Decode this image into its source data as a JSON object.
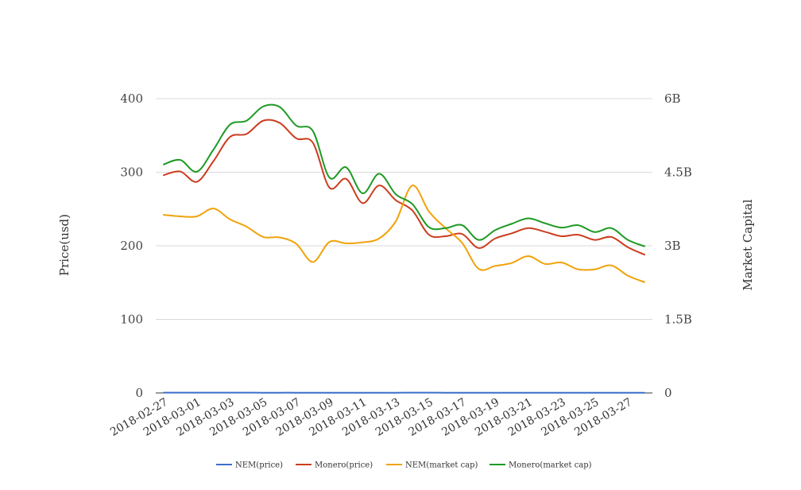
{
  "chart_data": {
    "type": "line",
    "title": "",
    "ylabel": "Price(usd)",
    "y2label": "Market Capital",
    "ylim": [
      0,
      400
    ],
    "y2lim": [
      0,
      6000000000
    ],
    "yticks": [
      "0",
      "100",
      "200",
      "300",
      "400"
    ],
    "y2ticks": [
      "0",
      "1.5B",
      "3B",
      "4.5B",
      "6B"
    ],
    "x_tick_labels": [
      "2018-02-27",
      "2018-03-01",
      "2018-03-03",
      "2018-03-05",
      "2018-03-07",
      "2018-03-09",
      "2018-03-11",
      "2018-03-13",
      "2018-03-15",
      "2018-03-17",
      "2018-03-19",
      "2018-03-21",
      "2018-03-23",
      "2018-03-25",
      "2018-03-27"
    ],
    "x": [
      "2018-02-27",
      "2018-02-28",
      "2018-03-01",
      "2018-03-02",
      "2018-03-03",
      "2018-03-04",
      "2018-03-05",
      "2018-03-06",
      "2018-03-07",
      "2018-03-08",
      "2018-03-09",
      "2018-03-10",
      "2018-03-11",
      "2018-03-12",
      "2018-03-13",
      "2018-03-14",
      "2018-03-15",
      "2018-03-16",
      "2018-03-17",
      "2018-03-18",
      "2018-03-19",
      "2018-03-20",
      "2018-03-21",
      "2018-03-22",
      "2018-03-23",
      "2018-03-24",
      "2018-03-25",
      "2018-03-26",
      "2018-03-27",
      "2018-03-28"
    ],
    "grid": true,
    "legend_position": "bottom",
    "series": [
      {
        "name": "NEM(price)",
        "axis": "left",
        "color": "#3a6fcb",
        "values": [
          0.42,
          0.41,
          0.4,
          0.41,
          0.38,
          0.36,
          0.34,
          0.34,
          0.33,
          0.27,
          0.31,
          0.3,
          0.3,
          0.31,
          0.33,
          0.42,
          0.36,
          0.33,
          0.3,
          0.25,
          0.26,
          0.26,
          0.28,
          0.26,
          0.27,
          0.25,
          0.25,
          0.26,
          0.24,
          0.22
        ]
      },
      {
        "name": "Monero(price)",
        "axis": "left",
        "color": "#cc3d1f",
        "values": [
          296,
          301,
          287,
          315,
          348,
          352,
          370,
          367,
          346,
          340,
          279,
          291,
          258,
          282,
          262,
          248,
          215,
          213,
          216,
          197,
          210,
          217,
          224,
          219,
          213,
          215,
          208,
          212,
          198,
          188
        ]
      },
      {
        "name": "NEM(market cap)",
        "axis": "right",
        "color": "#f0a30a",
        "values": [
          3630000000,
          3600000000,
          3600000000,
          3760000000,
          3540000000,
          3390000000,
          3180000000,
          3170000000,
          3040000000,
          2670000000,
          3080000000,
          3050000000,
          3070000000,
          3150000000,
          3500000000,
          4230000000,
          3700000000,
          3360000000,
          3060000000,
          2530000000,
          2590000000,
          2650000000,
          2790000000,
          2630000000,
          2660000000,
          2520000000,
          2520000000,
          2600000000,
          2390000000,
          2260000000
        ]
      },
      {
        "name": "Monero(market cap)",
        "axis": "right",
        "color": "#1e9a24",
        "values": [
          4660000000,
          4750000000,
          4510000000,
          4960000000,
          5470000000,
          5550000000,
          5840000000,
          5830000000,
          5450000000,
          5340000000,
          4390000000,
          4600000000,
          4070000000,
          4470000000,
          4050000000,
          3850000000,
          3380000000,
          3360000000,
          3420000000,
          3120000000,
          3320000000,
          3450000000,
          3560000000,
          3460000000,
          3370000000,
          3420000000,
          3280000000,
          3360000000,
          3120000000,
          2990000000
        ]
      }
    ]
  }
}
